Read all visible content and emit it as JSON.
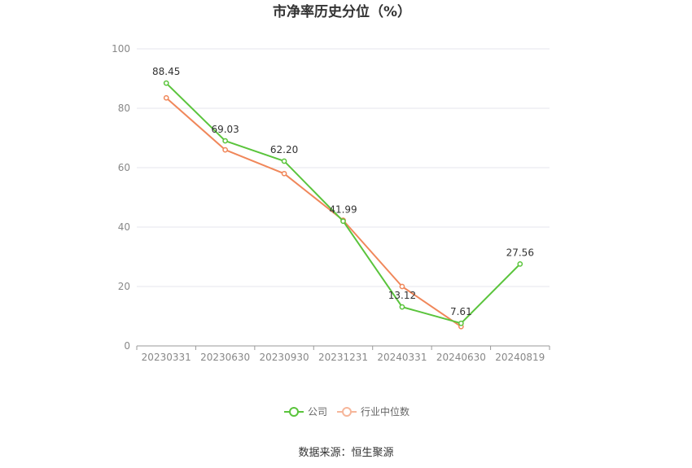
{
  "chart_data": {
    "type": "line",
    "title": "市净率历史分位（%）",
    "source": "数据来源：恒生聚源",
    "x": [
      "20230331",
      "20230630",
      "20230930",
      "20231231",
      "20240331",
      "20240630",
      "20240819"
    ],
    "ylim": [
      0,
      100
    ],
    "yticks": [
      0,
      20,
      40,
      60,
      80,
      100
    ],
    "grid": true,
    "legend_position": "bottom",
    "series": [
      {
        "name": "公司",
        "color": "#5ac43c",
        "values": [
          88.45,
          69.03,
          62.2,
          41.99,
          13.12,
          7.61,
          27.56
        ],
        "labels": [
          "88.45",
          "69.03",
          "62.20",
          "41.99",
          "13.12",
          "7.61",
          "27.56"
        ]
      },
      {
        "name": "行业中位数",
        "color": "#f0875a",
        "values": [
          83.5,
          66.0,
          58.0,
          42.3,
          20.0,
          6.5,
          null
        ]
      }
    ]
  }
}
